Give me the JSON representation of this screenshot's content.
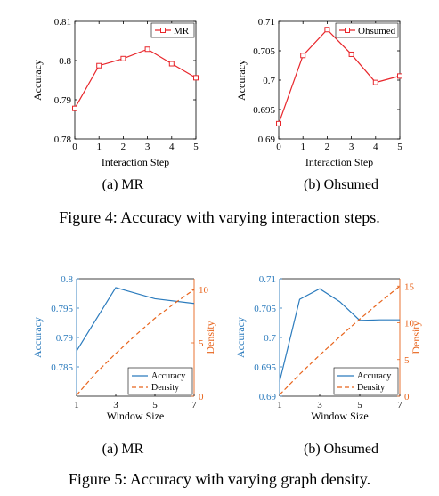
{
  "figure4": {
    "caption": "Figure 4: Accuracy with varying interaction steps.",
    "panels": [
      {
        "sublabel": "(a) MR"
      },
      {
        "sublabel": "(b) Ohsumed"
      }
    ]
  },
  "figure5": {
    "caption": "Figure 5: Accuracy with varying graph density.",
    "panels": [
      {
        "sublabel": "(a) MR"
      },
      {
        "sublabel": "(b) Ohsumed"
      }
    ]
  },
  "colors": {
    "red": "#e8262b",
    "blue": "#2b7bbd",
    "orange": "#e8641c",
    "axis": "#000000"
  },
  "chart_data": [
    {
      "type": "line",
      "xlabel": "Interaction Step",
      "ylabel": "Accuracy",
      "xlim": [
        0,
        5
      ],
      "ylim": [
        0.78,
        0.81
      ],
      "xticks": [
        "0",
        "1",
        "2",
        "3",
        "4",
        "5"
      ],
      "yticks": [
        "0.78",
        "0.79",
        "0.8",
        "0.81"
      ],
      "legend_position": "top-right",
      "grid": false,
      "x": [
        0,
        1,
        2,
        3,
        4,
        5
      ],
      "series": [
        {
          "name": "MR",
          "values": [
            0.7878,
            0.7987,
            0.8005,
            0.8029,
            0.7992,
            0.7956
          ]
        }
      ]
    },
    {
      "type": "line",
      "xlabel": "Interaction Step",
      "ylabel": "Accuracy",
      "xlim": [
        0,
        5
      ],
      "ylim": [
        0.69,
        0.71
      ],
      "xticks": [
        "0",
        "1",
        "2",
        "3",
        "4",
        "5"
      ],
      "yticks": [
        "0.69",
        "0.695",
        "0.7",
        "0.705",
        "0.71"
      ],
      "legend_position": "top-right",
      "grid": false,
      "x": [
        0,
        1,
        2,
        3,
        4,
        5
      ],
      "series": [
        {
          "name": "Ohsumed",
          "values": [
            0.6926,
            0.7042,
            0.7086,
            0.7044,
            0.6996,
            0.7007
          ]
        }
      ]
    },
    {
      "type": "line",
      "xlabel": "Window Size",
      "ylabel": "Accuracy",
      "y2label": "Density",
      "xlim": [
        1,
        7
      ],
      "ylim": [
        0.78,
        0.8
      ],
      "y2lim": [
        0,
        11
      ],
      "xticks": [
        "1",
        "3",
        "5",
        "7"
      ],
      "yticks": [
        "0.785",
        "0.79",
        "0.795",
        "0.8"
      ],
      "y2ticks": [
        "0",
        "5",
        "10"
      ],
      "legend_position": "bottom-right",
      "grid": false,
      "series": [
        {
          "name": "Accuracy",
          "axis": "left",
          "x": [
            1,
            3,
            5,
            7
          ],
          "values": [
            0.7877,
            0.7985,
            0.7966,
            0.7958
          ]
        },
        {
          "name": "Density",
          "axis": "right",
          "x": [
            1,
            2,
            3,
            4,
            5,
            6,
            7
          ],
          "values": [
            0.1,
            2.2,
            4.0,
            5.7,
            7.3,
            8.7,
            10.0
          ]
        }
      ]
    },
    {
      "type": "line",
      "xlabel": "Window Size",
      "ylabel": "Accuracy",
      "y2label": "Density",
      "xlim": [
        1,
        7
      ],
      "ylim": [
        0.69,
        0.71
      ],
      "y2lim": [
        0,
        16
      ],
      "xticks": [
        "1",
        "3",
        "5",
        "7"
      ],
      "yticks": [
        "0.69",
        "0.695",
        "0.7",
        "0.705",
        "0.71"
      ],
      "y2ticks": [
        "0",
        "5",
        "10",
        "15"
      ],
      "legend_position": "bottom-right",
      "grid": false,
      "series": [
        {
          "name": "Accuracy",
          "axis": "left",
          "x": [
            1,
            2,
            3,
            4,
            5,
            6,
            7
          ],
          "values": [
            0.6925,
            0.7065,
            0.7083,
            0.7061,
            0.7029,
            0.703,
            0.703
          ]
        },
        {
          "name": "Density",
          "axis": "right",
          "x": [
            1,
            2,
            3,
            4,
            5,
            6,
            7
          ],
          "values": [
            0.2,
            3.0,
            5.6,
            8.1,
            10.5,
            12.8,
            15.0
          ]
        }
      ]
    }
  ]
}
